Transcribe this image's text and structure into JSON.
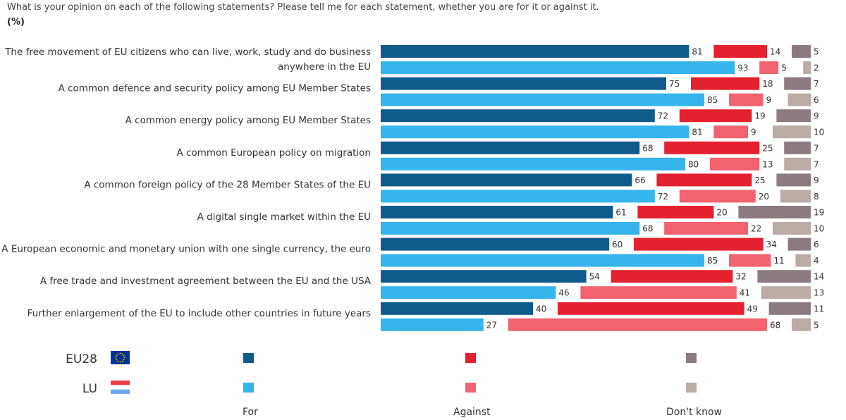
{
  "question": "What is your opinion on each of the following statements? Please tell me for each statement, whether you are for it or against it.",
  "unit_label": "(%)",
  "colors": {
    "eu28_for": "#0e5b8c",
    "lu_for": "#35b5ec",
    "eu28_against": "#e4212f",
    "lu_against": "#f2636f",
    "eu28_dk": "#8b7b80",
    "lu_dk": "#baaba4",
    "lu_flag_red": "#ef3a42",
    "lu_flag_blue": "#6fa6f2",
    "eu_flag_blue": "#003399",
    "eu_flag_star": "#ffcc00"
  },
  "legend": {
    "eu28_label": "EU28",
    "lu_label": "LU",
    "for_label": "For",
    "against_label": "Against",
    "dk_label": "Don't know"
  },
  "chart_data": {
    "type": "bar",
    "orientation": "horizontal-stacked",
    "xlim": [
      0,
      100
    ],
    "segments": [
      "For",
      "Against",
      "Don't know"
    ],
    "series_names": [
      "EU28",
      "LU"
    ],
    "categories": [
      {
        "label_lines": [
          "The free movement of EU citizens who can live, work, study and do business",
          "anywhere in the EU"
        ],
        "eu28": {
          "for": 81,
          "against": 14,
          "dk": 5
        },
        "lu": {
          "for": 93,
          "against": 5,
          "dk": 2
        }
      },
      {
        "label_lines": [
          "A common defence and security policy among EU Member States"
        ],
        "eu28": {
          "for": 75,
          "against": 18,
          "dk": 7
        },
        "lu": {
          "for": 85,
          "against": 9,
          "dk": 6
        }
      },
      {
        "label_lines": [
          "A common energy policy among EU Member States"
        ],
        "eu28": {
          "for": 72,
          "against": 19,
          "dk": 9
        },
        "lu": {
          "for": 81,
          "against": 9,
          "dk": 10
        }
      },
      {
        "label_lines": [
          "A common European policy on migration"
        ],
        "eu28": {
          "for": 68,
          "against": 25,
          "dk": 7
        },
        "lu": {
          "for": 80,
          "against": 13,
          "dk": 7
        }
      },
      {
        "label_lines": [
          "A common foreign policy of the 28 Member States of the EU"
        ],
        "eu28": {
          "for": 66,
          "against": 25,
          "dk": 9
        },
        "lu": {
          "for": 72,
          "against": 20,
          "dk": 8
        }
      },
      {
        "label_lines": [
          "A digital single market within the EU"
        ],
        "eu28": {
          "for": 61,
          "against": 20,
          "dk": 19
        },
        "lu": {
          "for": 68,
          "against": 22,
          "dk": 10
        }
      },
      {
        "label_lines": [
          "A European economic and monetary union with one single currency, the euro"
        ],
        "eu28": {
          "for": 60,
          "against": 34,
          "dk": 6
        },
        "lu": {
          "for": 85,
          "against": 11,
          "dk": 4
        }
      },
      {
        "label_lines": [
          "A free trade and investment agreement between the EU and the USA"
        ],
        "eu28": {
          "for": 54,
          "against": 32,
          "dk": 14
        },
        "lu": {
          "for": 46,
          "against": 41,
          "dk": 13
        }
      },
      {
        "label_lines": [
          "Further enlargement of the EU to include other countries in future years"
        ],
        "eu28": {
          "for": 40,
          "against": 49,
          "dk": 11
        },
        "lu": {
          "for": 27,
          "against": 68,
          "dk": 5
        }
      }
    ]
  }
}
